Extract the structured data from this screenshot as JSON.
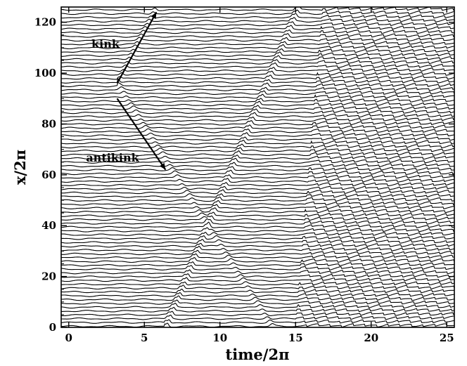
{
  "chart_data": {
    "type": "line",
    "title": "",
    "xlabel": "time/2π",
    "ylabel": "x/2π",
    "xlim": [
      -0.5,
      25.5
    ],
    "ylim": [
      0,
      126
    ],
    "xticks": [
      0,
      5,
      10,
      15,
      20,
      25
    ],
    "yticks": [
      0,
      20,
      40,
      60,
      80,
      100,
      120
    ],
    "grid": false,
    "legend": "none",
    "trace_spacing": 1.5,
    "annotations": [
      {
        "text": "kink",
        "arrow_from": [
          3.2,
          96
        ],
        "arrow_to": [
          5.8,
          124
        ]
      },
      {
        "text": "antikink",
        "arrow_from": [
          3.2,
          90
        ],
        "arrow_to": [
          6.4,
          62
        ]
      }
    ],
    "features": [
      {
        "name": "early soliton trajectory",
        "from": [
          6.5,
          0
        ],
        "to": [
          15.3,
          126
        ]
      },
      {
        "name": "kink trajectory",
        "from": [
          3.2,
          96
        ],
        "to": [
          5.8,
          126
        ]
      },
      {
        "name": "antikink trajectory",
        "from": [
          3.2,
          96
        ],
        "to": [
          13.5,
          0
        ]
      },
      {
        "name": "dense soliton region onset",
        "from": [
          15.0,
          0
        ],
        "to": [
          16.8,
          126
        ]
      }
    ],
    "colors": {
      "trace": "#000000",
      "background": "#ffffff"
    }
  }
}
